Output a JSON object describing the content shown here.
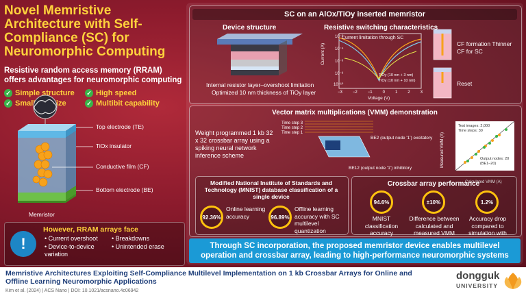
{
  "left": {
    "title": "Novel Memristive Architecture with Self-Compliance (SC) for Neuromorphic Computing",
    "subtitle": "Resistive random access memory (RRAM) offers advantages for neuromorphic computing",
    "features": [
      "Simple structure",
      "High speed",
      "Small cell size",
      "Multibit capability"
    ],
    "device_labels": {
      "te": "Top electrode (TE)",
      "tiox": "TiOx insulator",
      "cf": "Conductive film (CF)",
      "be": "Bottom electrode (BE)",
      "memristor": "Memristor"
    },
    "faces": {
      "title": "However, RRAM arrays face",
      "items": [
        "Current overshoot",
        "Breakdowns",
        "Device-to-device variation",
        "Unintended erase"
      ]
    }
  },
  "right": {
    "header": "SC on an AlOx/TiOy inserted memristor",
    "device_structure": {
      "title": "Device structure",
      "caption1": "Internal resistor layer–overshoot limitation",
      "caption2": "Optimized 10 nm thickness of TiOy layer"
    },
    "switching": {
      "title": "Resistive switching characteristics",
      "inset": "Current limitation through SC",
      "xlabel": "Voltage (V)",
      "ylabel": "Current (A)",
      "xticks": [
        "−3",
        "−2",
        "−1",
        "0",
        "1",
        "2",
        "3"
      ],
      "yticks": [
        "10⁻²",
        "10⁻⁴",
        "10⁻⁶",
        "10⁻⁸",
        "10⁻¹⁰"
      ],
      "legend": [
        "TiOy (10 nm + 3 nm)",
        "TiOy (10 nm + 10 nm)"
      ]
    },
    "cf": {
      "formation": "CF formation Thinner CF for SC",
      "reset": "Reset"
    },
    "vmm": {
      "title": "Vector matrix multiplications (VMM) demonstration",
      "desc": "Weight programmed 1 kb 32 x 32 crossbar array using a spiking neural network inference scheme",
      "steps": [
        "Time step 3",
        "Time step 2",
        "Time step 1"
      ],
      "be2": "BE2 (output node '1') excitatory",
      "be12": "BE12 (output node '1') inhibitory",
      "plot_note1": "Test images: 2,000",
      "plot_note2": "Time steps: 30",
      "plot_note3": "Output nodes: 20 (BE1–20)",
      "xlabel": "Calculated VMM (A)",
      "ylabel": "Measured VMM (A)"
    },
    "mnist": {
      "title": "Modified National Institute of Standards and Technology (MNIST) database classification of a single device",
      "online_value": "92.36%",
      "online_label": "Online learning accuracy",
      "offline_value": "96.89%",
      "offline_label": "Offline learning accuracy with SC multilevel quantization"
    },
    "crossbar": {
      "title": "Crossbar array performance",
      "m1_value": "94.6%",
      "m1_label": "MNIST classification accuracy",
      "m2_value": "±10%",
      "m2_label": "Difference between calculated and measured VMM",
      "m3_value": "1.2%",
      "m3_label": "Accuracy drop compared to simulation with ideal weights"
    },
    "banner": "Through SC incorporation, the proposed memristor device enables multilevel operation and crossbar array, leading to high-performance neuromorphic systems"
  },
  "footer": {
    "title": "Memristive Architectures Exploiting Self-Compliance Multilevel Implementation on 1 kb Crossbar Arrays for Online and Offline Learning Neuromorphic Applications",
    "citation": "Kim et al. (2024) | ACS Nano | DOI: 10.1021/acsnano.4c06942",
    "logo_main": "dongguk",
    "logo_sub": "UNIVERSITY"
  }
}
